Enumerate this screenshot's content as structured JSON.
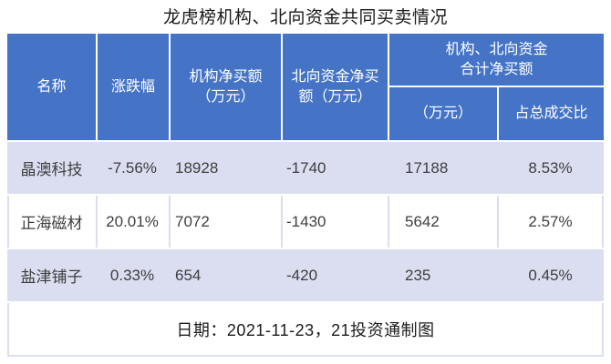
{
  "title": "龙虎榜机构、北向资金共同买卖情况",
  "colors": {
    "header_bg": "#4574c6",
    "stripe_bg": "#dadef0",
    "header_text": "#ffffff",
    "body_text": "#3e3e3e"
  },
  "table": {
    "headers": {
      "name": "名称",
      "change": "涨跌幅",
      "inst_net": "机构净买额\n（万元）",
      "north_net": "北向资金净买\n额（万元）",
      "combined_group": "机构、北向资金\n合计净买额",
      "combined_amount": "（万元）",
      "combined_ratio": "占总成交比"
    },
    "rows": [
      {
        "name": "晶澳科技",
        "change": "-7.56%",
        "inst": "18928",
        "north": "-1740",
        "combined": "17188",
        "ratio": "8.53%"
      },
      {
        "name": "正海磁材",
        "change": "20.01%",
        "inst": "7072",
        "north": "-1430",
        "combined": "5642",
        "ratio": "2.57%"
      },
      {
        "name": "盐津铺子",
        "change": "0.33%",
        "inst": "654",
        "north": "-420",
        "combined": "235",
        "ratio": "0.45%"
      }
    ],
    "footer": "日期：2021-11-23，21投资通制图"
  },
  "chart_data": {
    "type": "table",
    "title": "龙虎榜机构、北向资金共同买卖情况",
    "columns": [
      "名称",
      "涨跌幅",
      "机构净买额（万元）",
      "北向资金净买额（万元）",
      "机构、北向资金合计净买额（万元）",
      "机构、北向资金合计净买额占总成交比"
    ],
    "rows": [
      [
        "晶澳科技",
        "-7.56%",
        18928,
        -1740,
        17188,
        "8.53%"
      ],
      [
        "正海磁材",
        "20.01%",
        7072,
        -1430,
        5642,
        "2.57%"
      ],
      [
        "盐津铺子",
        "0.33%",
        654,
        -420,
        235,
        "0.45%"
      ]
    ],
    "footnote": "日期：2021-11-23，21投资通制图"
  }
}
